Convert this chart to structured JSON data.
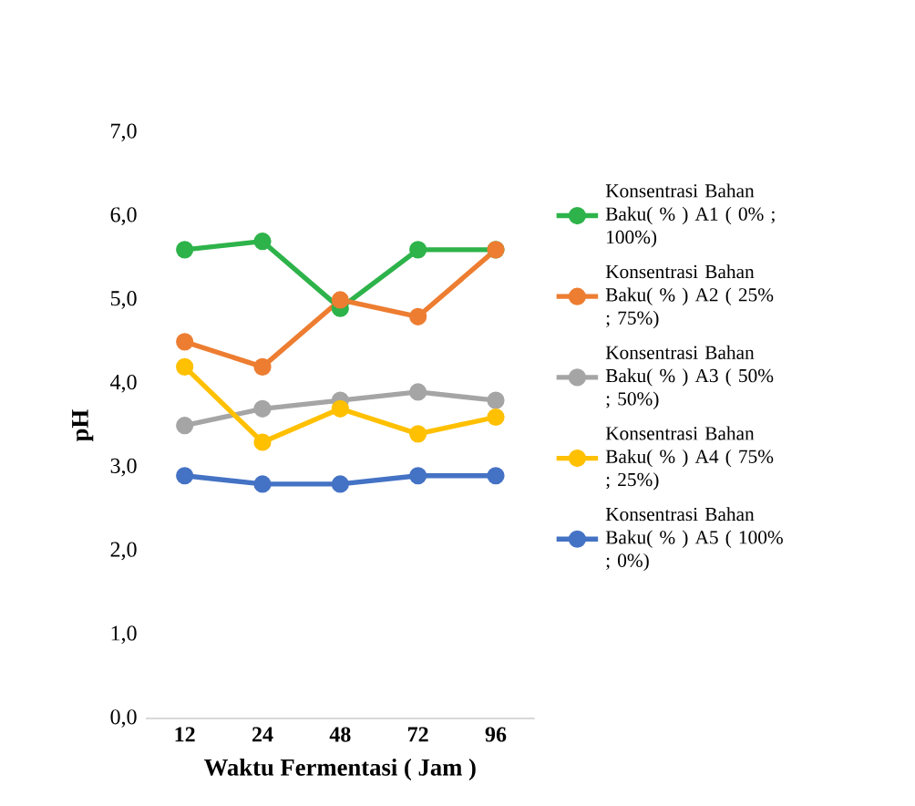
{
  "chart_data": {
    "type": "line",
    "xlabel": "Waktu Fermentasi ( Jam )",
    "ylabel": "pH",
    "categories": [
      "12",
      "24",
      "48",
      "72",
      "96"
    ],
    "series": [
      {
        "name": "Konsentrasi Bahan Baku( % ) A1 ( 0% ; 100%)",
        "color": "#2db34a",
        "values": [
          5.6,
          5.7,
          4.9,
          5.6,
          5.6
        ]
      },
      {
        "name": "Konsentrasi Bahan Baku( % ) A2 ( 25% ; 75%)",
        "color": "#ed7d31",
        "values": [
          4.5,
          4.2,
          5.0,
          4.8,
          5.6
        ]
      },
      {
        "name": "Konsentrasi Bahan Baku( % ) A3 ( 50% ; 50%)",
        "color": "#a5a5a5",
        "values": [
          3.5,
          3.7,
          3.8,
          3.9,
          3.8
        ]
      },
      {
        "name": "Konsentrasi Bahan Baku( % ) A4 ( 75% ; 25%)",
        "color": "#ffc000",
        "values": [
          4.2,
          3.3,
          3.7,
          3.4,
          3.6
        ]
      },
      {
        "name": "Konsentrasi Bahan Baku( % ) A5 ( 100% ; 0%)",
        "color": "#4472c4",
        "values": [
          2.9,
          2.8,
          2.8,
          2.9,
          2.9
        ]
      }
    ],
    "ylim": [
      0,
      7
    ],
    "yticks": [
      {
        "value": 0,
        "label": "0,0"
      },
      {
        "value": 1,
        "label": "1,0"
      },
      {
        "value": 2,
        "label": "2,0"
      },
      {
        "value": 3,
        "label": "3,0"
      },
      {
        "value": 4,
        "label": "4,0"
      },
      {
        "value": 5,
        "label": "5,0"
      },
      {
        "value": 6,
        "label": "6,0"
      },
      {
        "value": 7,
        "label": "7,0"
      }
    ],
    "marker": "circle",
    "legend": "right",
    "grid": false
  }
}
